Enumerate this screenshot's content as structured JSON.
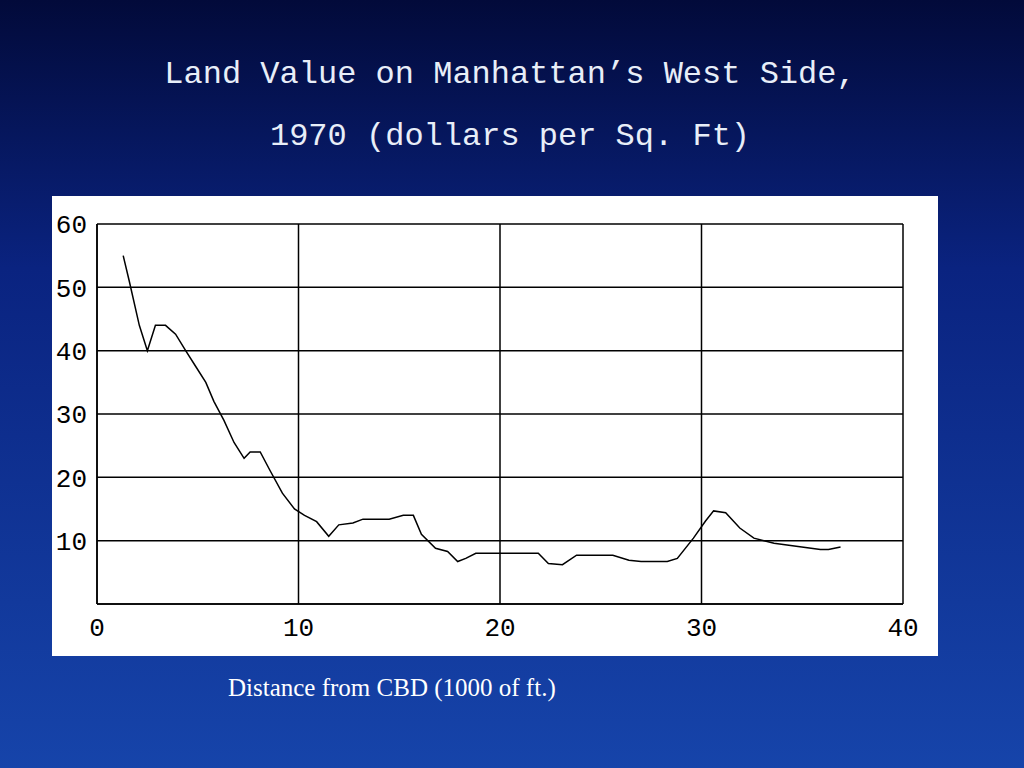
{
  "chart_data": {
    "type": "line",
    "title": "Land Value on Manhattan’s West Side, 1970 (dollars per Sq. Ft)",
    "x_label": "Distance from CBD (1000 of ft.)",
    "x": [
      1.3,
      1.6,
      2.1,
      2.5,
      2.9,
      3.4,
      3.9,
      4.4,
      4.9,
      5.4,
      5.8,
      6.3,
      6.8,
      7.3,
      7.6,
      8.1,
      8.6,
      9.2,
      9.8,
      10.3,
      10.9,
      11.5,
      12.0,
      12.7,
      13.2,
      14.5,
      15.2,
      15.7,
      16.1,
      16.8,
      17.4,
      17.9,
      18.3,
      18.8,
      21.9,
      22.4,
      23.1,
      23.8,
      25.6,
      26.4,
      27.0,
      28.3,
      28.8,
      29.6,
      30.2,
      30.6,
      31.2,
      31.9,
      32.6,
      33.6,
      34.7,
      35.9,
      36.3,
      36.9
    ],
    "values": [
      55,
      51,
      44,
      40,
      44,
      44,
      42.6,
      40,
      37.5,
      35,
      32,
      29,
      25.5,
      23,
      24,
      24,
      21,
      17.5,
      15,
      14,
      13,
      10.7,
      12.5,
      12.8,
      13.4,
      13.4,
      14,
      14,
      11,
      8.8,
      8.3,
      6.7,
      7.2,
      8,
      8,
      6.4,
      6.2,
      7.7,
      7.7,
      6.9,
      6.7,
      6.7,
      7.2,
      10.4,
      13.1,
      14.7,
      14.4,
      12,
      10.4,
      9.6,
      9.1,
      8.6,
      8.6,
      9.0
    ],
    "color": "#000000",
    "xlim": [
      0,
      40
    ],
    "xticks": [
      0,
      10,
      20,
      30,
      40
    ],
    "ylim": [
      0,
      60
    ],
    "yticks": [
      10,
      20,
      30,
      40,
      50,
      60
    ],
    "grid": true
  }
}
